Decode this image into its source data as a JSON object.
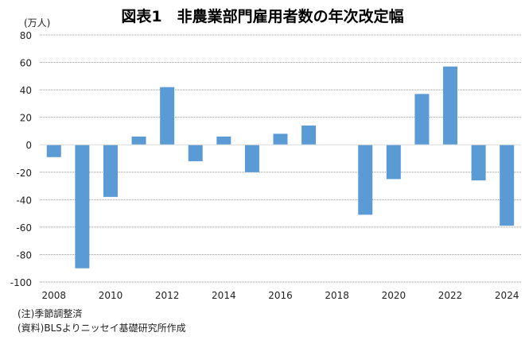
{
  "chart_data": {
    "type": "bar",
    "title": "図表1　非農業部門雇用者数の年次改定幅",
    "ylabel": "(万人)",
    "xlabel": "",
    "categories": [
      "2008",
      "2009",
      "2010",
      "2011",
      "2012",
      "2013",
      "2014",
      "2015",
      "2016",
      "2017",
      "2018",
      "2019",
      "2020",
      "2021",
      "2022",
      "2023",
      "2024"
    ],
    "values": [
      -9,
      -90,
      -38,
      6,
      42,
      -12,
      6,
      -20,
      8,
      14,
      0,
      -51,
      -25,
      37,
      57,
      -26,
      -59
    ],
    "x_tick_labels": [
      "2008",
      "2010",
      "2012",
      "2014",
      "2016",
      "2018",
      "2020",
      "2022",
      "2024"
    ],
    "y_ticks": [
      80,
      60,
      40,
      20,
      0,
      -20,
      -40,
      -60,
      -80,
      -100
    ],
    "ylim": [
      -100,
      80
    ],
    "grid": true,
    "bar_color": "#5b9bd5"
  },
  "notes": [
    "(注)季節調整済",
    "(資料)BLSよりニッセイ基礎研究所作成"
  ]
}
